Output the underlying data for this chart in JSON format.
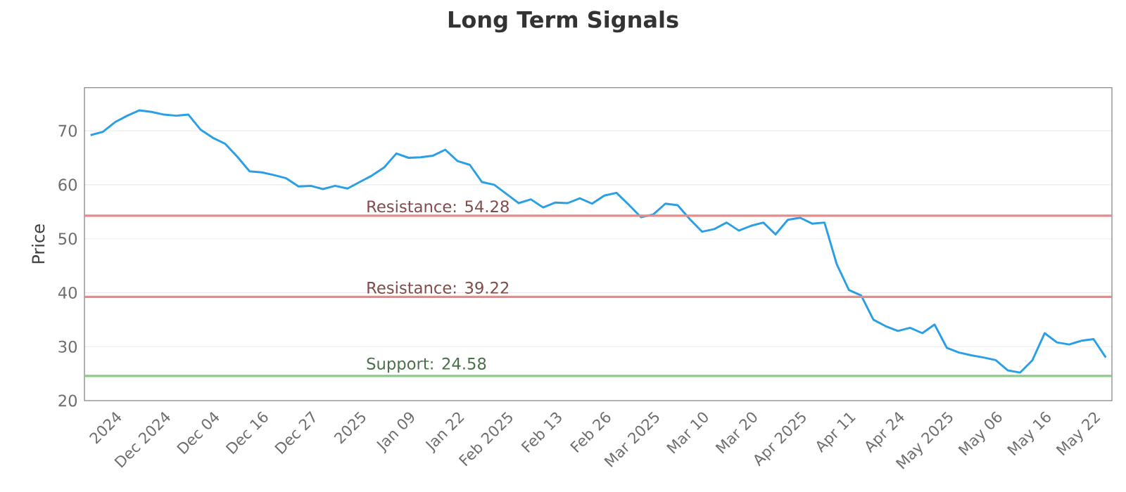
{
  "chart_data": {
    "type": "line",
    "title": "Long Term Signals",
    "ylabel": "Price",
    "categories": [
      null,
      null,
      "2024",
      null,
      null,
      null,
      "Dec 2024",
      null,
      null,
      null,
      "Dec 04",
      null,
      null,
      null,
      "Dec 16",
      null,
      null,
      null,
      "Dec 27",
      null,
      null,
      null,
      "2025",
      null,
      null,
      null,
      "Jan 09",
      null,
      null,
      null,
      "Jan 22",
      null,
      null,
      null,
      "Feb 2025",
      null,
      null,
      null,
      "Feb 13",
      null,
      null,
      null,
      "Feb 26",
      null,
      null,
      null,
      "Mar 2025",
      null,
      null,
      null,
      "Mar 10",
      null,
      null,
      null,
      "Mar 20",
      null,
      null,
      null,
      "Apr 2025",
      null,
      null,
      null,
      "Apr 11",
      null,
      null,
      null,
      "Apr 24",
      null,
      null,
      null,
      "May 2025",
      null,
      null,
      null,
      "May 06",
      null,
      null,
      null,
      "May 16",
      null,
      null,
      null,
      "May 22",
      null
    ],
    "series": [
      {
        "color": "#2a9fe6",
        "values": [
          69.2,
          69.8,
          71.6,
          72.8,
          73.8,
          73.5,
          73,
          72.8,
          73,
          70.2,
          68.7,
          67.6,
          65.2,
          62.5,
          62.3,
          61.8,
          61.2,
          59.7,
          59.8,
          59.2,
          59.8,
          59.3,
          60.5,
          61.7,
          63.2,
          65.8,
          65,
          65.1,
          65.4,
          66.5,
          64.4,
          63.7,
          60.5,
          60,
          58.3,
          56.6,
          57.3,
          55.8,
          56.7,
          56.6,
          57.5,
          56.5,
          58,
          58.5,
          56.3,
          54,
          54.5,
          56.5,
          56.2,
          53.6,
          51.3,
          51.8,
          53,
          51.5,
          52.4,
          53,
          50.8,
          53.5,
          53.9,
          52.8,
          53,
          45.3,
          40.5,
          39.5,
          35,
          33.8,
          32.9,
          33.5,
          32.5,
          34.1,
          29.8,
          28.9,
          28.4,
          28,
          27.5,
          25.6,
          25.2,
          27.5,
          32.5,
          30.8,
          30.4,
          31.1,
          31.4,
          28
        ]
      }
    ],
    "ylim": [
      20,
      78
    ],
    "yticks": [
      20,
      30,
      40,
      50,
      60,
      70
    ],
    "grid": "y",
    "marker": "none",
    "line_style": "solid",
    "ref_lines": [
      {
        "axis": "y",
        "value": 54.28,
        "label": "Resistance: 54.28",
        "color": "#e88a8a"
      },
      {
        "axis": "y",
        "value": 39.22,
        "label": "Resistance: 39.22",
        "color": "#e88a8a"
      },
      {
        "axis": "y",
        "value": 24.58,
        "label": "Support: 24.58",
        "color": "#8acb8a"
      }
    ]
  }
}
